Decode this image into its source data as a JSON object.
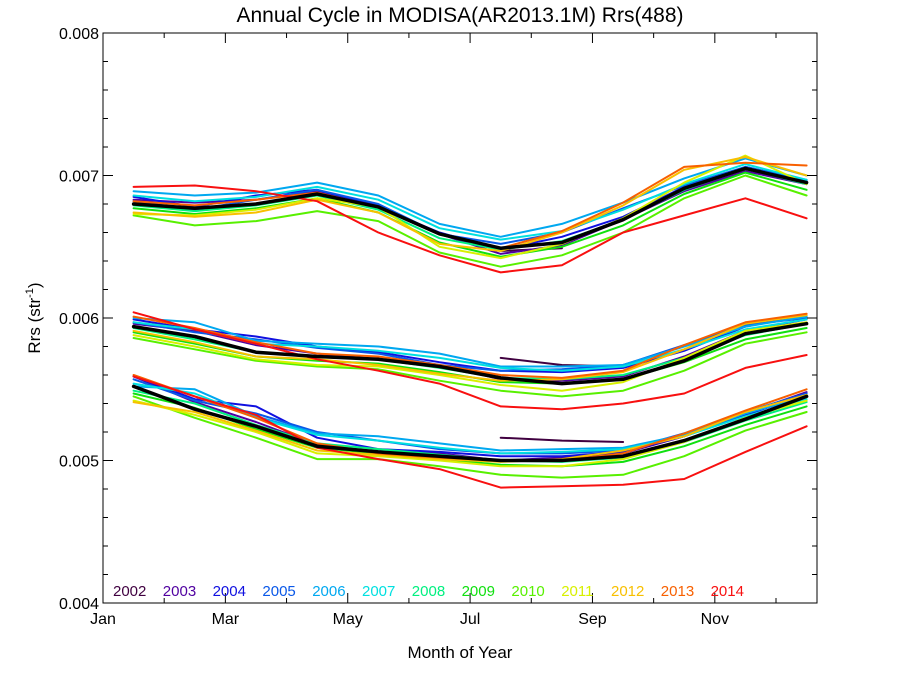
{
  "chart_data": {
    "type": "line",
    "title": "Annual Cycle in MODISA(AR2013.1M) Rrs(488)",
    "xlabel": "Month of Year",
    "ylabel": "Rrs (str",
    "ylabel_sup": "-1",
    "ylabel_close": ")",
    "xlim": [
      1,
      12.67
    ],
    "ylim": [
      0.004,
      0.008
    ],
    "x_ticks": [
      {
        "value": 1,
        "label": "Jan"
      },
      {
        "value": 3,
        "label": "Mar"
      },
      {
        "value": 5,
        "label": "May"
      },
      {
        "value": 7,
        "label": "Jul"
      },
      {
        "value": 9,
        "label": "Sep"
      },
      {
        "value": 11,
        "label": "Nov"
      }
    ],
    "y_ticks": [
      {
        "value": 0.004,
        "label": "0.004"
      },
      {
        "value": 0.005,
        "label": "0.005"
      },
      {
        "value": 0.006,
        "label": "0.006"
      },
      {
        "value": 0.007,
        "label": "0.007"
      },
      {
        "value": 0.008,
        "label": "0.008"
      }
    ],
    "x": [
      1.5,
      2.5,
      3.5,
      4.5,
      5.5,
      6.5,
      7.5,
      8.5,
      9.5,
      10.5,
      11.5,
      12.5
    ],
    "legend_position": "bottom-left",
    "series": [
      {
        "name": "2002",
        "color": "#400040",
        "width": 2,
        "groups": [
          [
            null,
            null,
            null,
            null,
            null,
            null,
            0.00647,
            0.00649,
            null,
            null,
            null,
            0.00691
          ],
          [
            null,
            null,
            null,
            null,
            null,
            null,
            0.00572,
            0.00567,
            0.00566,
            null,
            null,
            0.00598
          ],
          [
            null,
            null,
            null,
            null,
            null,
            null,
            0.00516,
            0.00514,
            0.00513,
            null,
            null,
            0.00558
          ]
        ]
      },
      {
        "name": "2003",
        "color": "#5000a0",
        "width": 2,
        "groups": [
          [
            0.00683,
            0.00681,
            0.00683,
            0.00689,
            0.00679,
            0.00659,
            0.00645,
            0.00651,
            0.00669,
            0.00689,
            0.00703,
            0.00694
          ],
          [
            0.00596,
            0.00591,
            0.00581,
            0.00575,
            0.00571,
            0.00567,
            0.00557,
            0.00556,
            0.00559,
            0.00573,
            0.00591,
            0.00599
          ],
          [
            0.00559,
            0.00541,
            0.00527,
            0.00511,
            0.00506,
            0.00505,
            0.005,
            0.00502,
            0.00505,
            0.00517,
            0.00533,
            0.00548
          ]
        ]
      },
      {
        "name": "2004",
        "color": "#1010e0",
        "width": 2,
        "groups": [
          [
            0.00685,
            0.00678,
            0.00686,
            0.0069,
            0.00678,
            0.0066,
            0.00648,
            0.00657,
            0.00671,
            0.00692,
            0.00706,
            0.00696
          ],
          [
            0.00599,
            0.00592,
            0.00587,
            0.0058,
            0.00576,
            0.00569,
            0.00563,
            0.00562,
            0.00565,
            0.00577,
            0.00594,
            0.00602
          ],
          [
            0.00559,
            0.00543,
            0.00538,
            0.00516,
            0.00508,
            0.00506,
            0.00503,
            0.00503,
            0.00506,
            0.00517,
            0.00532,
            0.00546
          ]
        ]
      },
      {
        "name": "2005",
        "color": "#0a58e8",
        "width": 2,
        "groups": [
          [
            0.00682,
            0.00676,
            0.00683,
            0.0069,
            0.0068,
            0.00659,
            0.00652,
            0.0066,
            0.00677,
            0.00693,
            0.00706,
            0.00697
          ],
          [
            0.00597,
            0.0059,
            0.00585,
            0.00579,
            0.00575,
            0.00567,
            0.00563,
            0.00564,
            0.00567,
            0.00581,
            0.00595,
            0.006
          ],
          [
            0.00557,
            0.00542,
            0.00533,
            0.0052,
            0.00514,
            0.00508,
            0.00505,
            0.00505,
            0.00507,
            0.00519,
            0.00534,
            0.00547
          ]
        ]
      },
      {
        "name": "2006",
        "color": "#00a8f0",
        "width": 2,
        "groups": [
          [
            0.00689,
            0.00686,
            0.00688,
            0.00695,
            0.00686,
            0.00666,
            0.00657,
            0.00666,
            0.00681,
            0.00698,
            0.00712,
            0.007
          ],
          [
            0.006,
            0.00597,
            0.00584,
            0.00582,
            0.0058,
            0.00575,
            0.00566,
            0.00566,
            0.00567,
            0.0058,
            0.00594,
            0.00601
          ],
          [
            0.00552,
            0.0055,
            0.00531,
            0.00519,
            0.00517,
            0.00512,
            0.00507,
            0.00508,
            0.00509,
            0.00518,
            0.00533,
            0.00545
          ]
        ]
      },
      {
        "name": "2007",
        "color": "#00e0e0",
        "width": 2,
        "groups": [
          [
            0.00686,
            0.00682,
            0.00685,
            0.00692,
            0.00683,
            0.00663,
            0.00655,
            0.00661,
            0.00676,
            0.00694,
            0.00708,
            0.00697
          ],
          [
            0.00597,
            0.00592,
            0.00582,
            0.0058,
            0.00577,
            0.00572,
            0.00565,
            0.00563,
            0.00566,
            0.00578,
            0.00592,
            0.00599
          ],
          [
            0.00554,
            0.00547,
            0.0053,
            0.00518,
            0.00514,
            0.00509,
            0.00505,
            0.00506,
            0.00508,
            0.00517,
            0.00531,
            0.00543
          ]
        ]
      },
      {
        "name": "2008",
        "color": "#00f080",
        "width": 2,
        "groups": [
          [
            0.00679,
            0.00675,
            0.00679,
            0.00686,
            0.00676,
            0.00656,
            0.00648,
            0.00654,
            0.00669,
            0.0069,
            0.00705,
            0.00694
          ],
          [
            0.00593,
            0.00585,
            0.00576,
            0.00573,
            0.00571,
            0.00565,
            0.00558,
            0.00557,
            0.0056,
            0.00572,
            0.00588,
            0.00596
          ],
          [
            0.00549,
            0.0054,
            0.00525,
            0.00512,
            0.00508,
            0.00504,
            0.005,
            0.00499,
            0.00502,
            0.00513,
            0.00528,
            0.00541
          ]
        ]
      },
      {
        "name": "2009",
        "color": "#10e010",
        "width": 2,
        "groups": [
          [
            0.00677,
            0.00673,
            0.00677,
            0.00684,
            0.00674,
            0.00653,
            0.00643,
            0.0065,
            0.00665,
            0.00687,
            0.00702,
            0.0069
          ],
          [
            0.0059,
            0.00582,
            0.00573,
            0.0057,
            0.00568,
            0.00562,
            0.00555,
            0.00554,
            0.00557,
            0.00569,
            0.00585,
            0.00593
          ],
          [
            0.00547,
            0.00537,
            0.00522,
            0.00509,
            0.00505,
            0.00501,
            0.00497,
            0.00496,
            0.00499,
            0.0051,
            0.00525,
            0.00538
          ]
        ]
      },
      {
        "name": "2010",
        "color": "#58f000",
        "width": 2,
        "groups": [
          [
            0.00672,
            0.00665,
            0.00668,
            0.00675,
            0.00668,
            0.00646,
            0.00636,
            0.00644,
            0.0066,
            0.00684,
            0.007,
            0.00686
          ],
          [
            0.00586,
            0.00578,
            0.0057,
            0.00566,
            0.00564,
            0.00556,
            0.00549,
            0.00545,
            0.00549,
            0.00563,
            0.00582,
            0.0059
          ],
          [
            0.00545,
            0.0053,
            0.00516,
            0.00501,
            0.00501,
            0.00496,
            0.0049,
            0.00488,
            0.0049,
            0.00503,
            0.00521,
            0.00534
          ]
        ]
      },
      {
        "name": "2011",
        "color": "#d8f000",
        "width": 2,
        "groups": [
          [
            0.00673,
            0.00672,
            0.00676,
            0.00684,
            0.00678,
            0.0065,
            0.00642,
            0.00652,
            0.0067,
            0.00695,
            0.00714,
            0.00694
          ],
          [
            0.00588,
            0.0058,
            0.00571,
            0.00567,
            0.00566,
            0.0056,
            0.00553,
            0.00549,
            0.00555,
            0.00572,
            0.00591,
            0.00597
          ],
          [
            0.00542,
            0.00532,
            0.0052,
            0.00505,
            0.00503,
            0.005,
            0.00496,
            0.00496,
            0.00501,
            0.00513,
            0.0053,
            0.00542
          ]
        ]
      },
      {
        "name": "2012",
        "color": "#f8c000",
        "width": 2,
        "groups": [
          [
            0.00674,
            0.00671,
            0.00674,
            0.00683,
            0.00674,
            0.00652,
            0.00647,
            0.0066,
            0.00679,
            0.00704,
            0.00713,
            0.007
          ],
          [
            0.00591,
            0.00583,
            0.00573,
            0.00571,
            0.00567,
            0.00561,
            0.00556,
            0.00557,
            0.00562,
            0.00578,
            0.00596,
            0.00602
          ],
          [
            0.00541,
            0.00534,
            0.00521,
            0.00507,
            0.00504,
            0.00501,
            0.00499,
            0.00501,
            0.00507,
            0.00517,
            0.00534,
            0.00546
          ]
        ]
      },
      {
        "name": "2013",
        "color": "#f86000",
        "width": 2,
        "groups": [
          [
            0.00682,
            0.00679,
            0.00683,
            0.00688,
            0.00678,
            0.00659,
            0.00649,
            0.00661,
            0.00681,
            0.00706,
            0.00709,
            0.00707
          ],
          [
            0.00601,
            0.00593,
            0.00583,
            0.00575,
            0.00573,
            0.00567,
            0.0056,
            0.00558,
            0.00563,
            0.00581,
            0.00597,
            0.00603
          ],
          [
            0.0056,
            0.00545,
            0.0053,
            0.00512,
            0.00505,
            0.00502,
            0.005,
            0.005,
            0.00505,
            0.00519,
            0.00535,
            0.0055
          ]
        ]
      },
      {
        "name": "2014",
        "color": "#f81010",
        "width": 2,
        "groups": [
          [
            0.00692,
            0.00693,
            0.00689,
            0.00682,
            0.0066,
            0.00644,
            0.00632,
            0.00637,
            0.0066,
            0.00672,
            0.00684,
            0.0067
          ],
          [
            0.00604,
            0.00592,
            0.00582,
            0.00571,
            0.00563,
            0.00554,
            0.00538,
            0.00536,
            0.0054,
            0.00547,
            0.00565,
            0.00574
          ],
          [
            0.00559,
            0.00545,
            0.00532,
            0.00509,
            0.00501,
            0.00494,
            0.00481,
            0.00482,
            0.00483,
            0.00487,
            0.00506,
            0.00524
          ]
        ]
      },
      {
        "name": "",
        "color": "#000000",
        "width": 3.5,
        "groups": [
          [
            0.0068,
            0.00677,
            0.0068,
            0.00687,
            0.00678,
            0.00659,
            0.00649,
            0.00653,
            0.00669,
            0.00691,
            0.00705,
            0.00695
          ],
          [
            0.00594,
            0.00587,
            0.00576,
            0.00573,
            0.00571,
            0.00566,
            0.00558,
            0.00554,
            0.00557,
            0.0057,
            0.00589,
            0.00596
          ],
          [
            0.00552,
            0.00536,
            0.00524,
            0.0051,
            0.00506,
            0.00503,
            0.005,
            0.005,
            0.00503,
            0.00514,
            0.00529,
            0.00545
          ]
        ]
      }
    ]
  }
}
